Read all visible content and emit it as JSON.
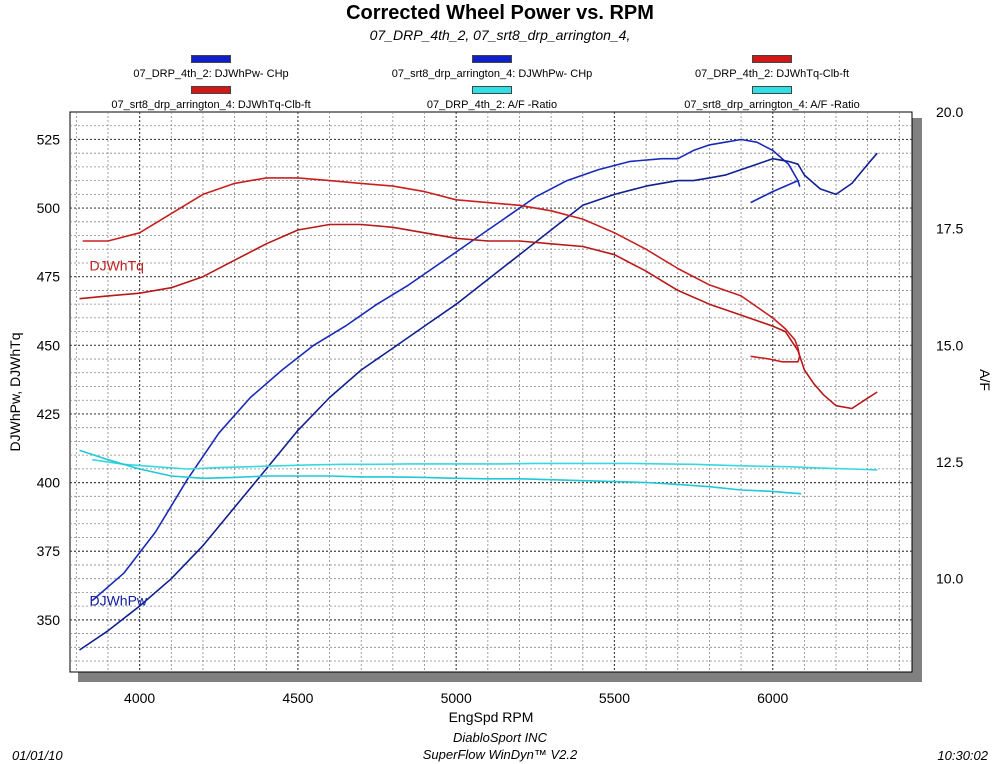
{
  "header": {
    "title": "Corrected Wheel Power vs. RPM",
    "subtitle": "07_DRP_4th_2, 07_srt8_drp_arrington_4,"
  },
  "legend": [
    {
      "label": "07_DRP_4th_2: DJWhPw- CHp",
      "color": "#1020c8"
    },
    {
      "label": "07_srt8_drp_arrington_4: DJWhPw- CHp",
      "color": "#1020c8"
    },
    {
      "label": "07_DRP_4th_2: DJWhTq-Clb-ft",
      "color": "#d01818"
    },
    {
      "label": "07_srt8_drp_arrington_4: DJWhTq-Clb-ft",
      "color": "#d01818"
    },
    {
      "label": "07_DRP_4th_2:  A/F  -Ratio",
      "color": "#30e0e8"
    },
    {
      "label": "07_srt8_drp_arrington_4:  A/F  -Ratio",
      "color": "#30e0e8"
    }
  ],
  "footer": {
    "date": "01/01/10",
    "time": "10:30:02",
    "company": "DiabloSport INC",
    "software": "SuperFlow WinDyn™ V2.2"
  },
  "chart_data": {
    "type": "line",
    "xlabel": "EngSpd  RPM",
    "ylabel": "DJWhPw,  DJWhTq",
    "y2label": "A/F",
    "xlim": [
      3780,
      6440
    ],
    "ylim": [
      331,
      535
    ],
    "y2lim": [
      8.0,
      20.0
    ],
    "x_ticks": [
      4000,
      4500,
      5000,
      5500,
      6000
    ],
    "y_ticks": [
      350,
      375,
      400,
      425,
      450,
      475,
      500,
      525
    ],
    "y2_ticks": [
      "10.0",
      "12.5",
      "15.0",
      "17.5",
      "20.0"
    ],
    "grid": true,
    "annotations": [
      {
        "text": "DJWhTq",
        "x": 3810,
        "y": 479,
        "color": "#c02020"
      },
      {
        "text": "DJWhPw",
        "x": 3810,
        "y": 357,
        "color": "#1020a0"
      }
    ],
    "series": [
      {
        "name": "07_DRP_4th_2: DJWhPw- CHp",
        "color": "#1a2ab8",
        "axis": "left",
        "x": [
          3850,
          3950,
          4050,
          4150,
          4250,
          4350,
          4450,
          4550,
          4650,
          4750,
          4850,
          4950,
          5050,
          5150,
          5250,
          5350,
          5450,
          5550,
          5650,
          5700,
          5750,
          5800,
          5850,
          5900,
          5950,
          6000,
          6050,
          6080,
          6085,
          6080,
          6000,
          5930
        ],
        "y": [
          357,
          367,
          382,
          401,
          418,
          431,
          441,
          450,
          457,
          465,
          472,
          480,
          488,
          496,
          504,
          510,
          514,
          517,
          518,
          518,
          521,
          523,
          524,
          525,
          524,
          521,
          516,
          510,
          508,
          510,
          506,
          502
        ]
      },
      {
        "name": "07_srt8_drp_arrington_4: DJWhPw- CHp",
        "color": "#102090",
        "axis": "left",
        "x": [
          3810,
          3900,
          4000,
          4100,
          4200,
          4300,
          4400,
          4500,
          4600,
          4700,
          4800,
          4900,
          5000,
          5100,
          5200,
          5300,
          5400,
          5500,
          5600,
          5700,
          5750,
          5800,
          5850,
          5900,
          5950,
          6000,
          6050,
          6080,
          6085,
          6100,
          6150,
          6200,
          6250,
          6300,
          6330
        ],
        "y": [
          339,
          346,
          355,
          365,
          377,
          391,
          405,
          419,
          431,
          441,
          449,
          457,
          465,
          474,
          483,
          492,
          501,
          505,
          508,
          510,
          510,
          511,
          512,
          514,
          516,
          518,
          517,
          516,
          515,
          512,
          507,
          505,
          509,
          516,
          520
        ]
      },
      {
        "name": "07_DRP_4th_2: DJWhTq-Clb-ft",
        "color": "#c82020",
        "axis": "left",
        "x": [
          3820,
          3900,
          4000,
          4100,
          4200,
          4300,
          4400,
          4500,
          4600,
          4700,
          4800,
          4900,
          5000,
          5100,
          5200,
          5300,
          5400,
          5500,
          5600,
          5700,
          5800,
          5900,
          5950,
          6000,
          6040,
          6070,
          6080,
          6085,
          6080,
          6030,
          5990,
          5930
        ],
        "y": [
          488,
          488,
          491,
          498,
          505,
          509,
          511,
          511,
          510,
          509,
          508,
          506,
          503,
          502,
          501,
          499,
          496,
          491,
          485,
          478,
          472,
          468,
          464,
          460,
          456,
          452,
          449,
          446,
          444,
          444,
          445,
          446
        ]
      },
      {
        "name": "07_srt8_drp_arrington_4: DJWhTq-Clb-ft",
        "color": "#b81818",
        "axis": "left",
        "x": [
          3810,
          3900,
          4000,
          4100,
          4200,
          4300,
          4400,
          4500,
          4600,
          4700,
          4800,
          4900,
          5000,
          5100,
          5200,
          5300,
          5400,
          5500,
          5600,
          5700,
          5800,
          5900,
          5950,
          6000,
          6040,
          6080,
          6100,
          6130,
          6160,
          6200,
          6250,
          6290,
          6330
        ],
        "y": [
          467,
          468,
          469,
          471,
          475,
          481,
          487,
          492,
          494,
          494,
          493,
          491,
          489,
          488,
          488,
          487,
          486,
          483,
          477,
          470,
          465,
          461,
          459,
          457,
          455,
          448,
          441,
          436,
          432,
          428,
          427,
          430,
          433
        ]
      },
      {
        "name": "07_DRP_4th_2:  A/F  -Ratio",
        "color": "#38d8e0",
        "axis": "right",
        "x": [
          3850,
          3950,
          4050,
          4150,
          4250,
          4350,
          4450,
          4550,
          4650,
          4750,
          4850,
          4950,
          5050,
          5150,
          5250,
          5350,
          5450,
          5550,
          5650,
          5750,
          5850,
          5950,
          6050,
          6150,
          6250,
          6330
        ],
        "y": [
          12.55,
          12.45,
          12.4,
          12.35,
          12.38,
          12.4,
          12.42,
          12.44,
          12.45,
          12.45,
          12.46,
          12.46,
          12.46,
          12.46,
          12.47,
          12.47,
          12.47,
          12.47,
          12.46,
          12.45,
          12.43,
          12.41,
          12.4,
          12.37,
          12.35,
          12.33
        ]
      },
      {
        "name": "07_srt8_drp_arrington_4:  A/F  -Ratio",
        "color": "#20c8d8",
        "axis": "right",
        "x": [
          3810,
          3900,
          4000,
          4100,
          4200,
          4300,
          4400,
          4500,
          4600,
          4700,
          4800,
          4900,
          5000,
          5100,
          5200,
          5300,
          5400,
          5500,
          5600,
          5700,
          5800,
          5900,
          6000,
          6050,
          6090
        ],
        "y": [
          12.75,
          12.55,
          12.35,
          12.2,
          12.15,
          12.17,
          12.2,
          12.2,
          12.2,
          12.18,
          12.18,
          12.17,
          12.15,
          12.14,
          12.14,
          12.12,
          12.1,
          12.08,
          12.06,
          12.02,
          11.97,
          11.9,
          11.87,
          11.84,
          11.82
        ]
      }
    ]
  }
}
